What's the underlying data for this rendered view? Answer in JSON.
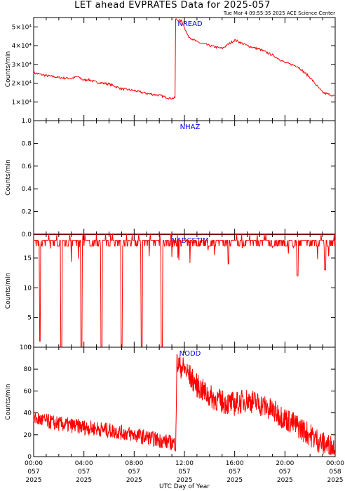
{
  "title": "LET ahead EVPRATES Data for 2025-057",
  "timestamp": "Tue Mar  4 09:55:35 2025 ACE Science Center",
  "xlabel": "UTC Day of Year",
  "colors": {
    "trace": "#ff0000",
    "panel_label": "#0000ff",
    "axis": "#000000"
  },
  "x_ticks": [
    {
      "time": "00:00",
      "doy": "057",
      "year": "2025"
    },
    {
      "time": "04:00",
      "doy": "057",
      "year": "2025"
    },
    {
      "time": "08:00",
      "doy": "057",
      "year": "2025"
    },
    {
      "time": "12:00",
      "doy": "057",
      "year": "2025"
    },
    {
      "time": "16:00",
      "doy": "057",
      "year": "2025"
    },
    {
      "time": "20:00",
      "doy": "057",
      "year": "2025"
    },
    {
      "time": "00:00",
      "doy": "058",
      "year": "2025"
    }
  ],
  "chart_data": [
    {
      "type": "line",
      "panel": "NREAD",
      "ylabel": "Counts/min",
      "ylim": [
        0,
        55000
      ],
      "yticks": [
        10000,
        20000,
        30000,
        40000,
        50000
      ],
      "ytick_labels": [
        "1×10⁴",
        "2×10⁴",
        "3×10⁴",
        "4×10⁴",
        "5×10⁴"
      ],
      "x_hours_range": [
        0,
        24
      ],
      "series": [
        {
          "points": [
            [
              0,
              25500
            ],
            [
              1,
              24000
            ],
            [
              2,
              23000
            ],
            [
              3,
              22500
            ],
            [
              3.5,
              23500
            ],
            [
              4,
              21500
            ],
            [
              4.3,
              22000
            ],
            [
              5,
              20500
            ],
            [
              6,
              19500
            ],
            [
              7,
              17000
            ],
            [
              8,
              16000
            ],
            [
              9,
              14500
            ],
            [
              10,
              13500
            ],
            [
              10.8,
              12000
            ],
            [
              11.3,
              12000
            ],
            [
              11.35,
              54000
            ],
            [
              11.8,
              53000
            ],
            [
              12.3,
              45000
            ],
            [
              13,
              42000
            ],
            [
              14,
              40000
            ],
            [
              15,
              38500
            ],
            [
              16,
              43000
            ],
            [
              17,
              40000
            ],
            [
              18,
              38000
            ],
            [
              19,
              35000
            ],
            [
              20,
              31000
            ],
            [
              21,
              29000
            ],
            [
              22,
              23000
            ],
            [
              23,
              15000
            ],
            [
              24,
              13000
            ]
          ]
        }
      ]
    },
    {
      "type": "line",
      "panel": "NHAZ",
      "ylabel": "Counts/min",
      "ylim": [
        0,
        1.0
      ],
      "yticks": [
        0,
        0.2,
        0.4,
        0.6,
        0.8,
        1.0
      ],
      "ytick_labels": [
        "0.0",
        "0.2",
        "0.4",
        "0.6",
        "0.8",
        "1.0"
      ],
      "x_hours_range": [
        0,
        24
      ],
      "series": [
        {
          "points": [
            [
              0,
              0
            ],
            [
              24,
              0
            ]
          ]
        }
      ]
    },
    {
      "type": "line",
      "panel": "NADCSTIM",
      "ylabel": "Counts/min",
      "ylim": [
        0,
        19
      ],
      "yticks": [
        0,
        5,
        10,
        15
      ],
      "ytick_labels": [
        "0",
        "5",
        "10",
        "15"
      ],
      "x_hours_range": [
        0,
        24
      ],
      "baseline": 18,
      "dropouts": [
        [
          0.5,
          1
        ],
        [
          2.2,
          0
        ],
        [
          3.8,
          0
        ],
        [
          5.4,
          0
        ],
        [
          7.0,
          0
        ],
        [
          8.6,
          0
        ],
        [
          10.2,
          0
        ],
        [
          21.0,
          12
        ],
        [
          15.5,
          14
        ],
        [
          23.2,
          13
        ]
      ]
    },
    {
      "type": "line",
      "panel": "NODD",
      "ylabel": "Counts/min",
      "ylim": [
        0,
        100
      ],
      "yticks": [
        0,
        20,
        40,
        60,
        80,
        100
      ],
      "ytick_labels": [
        "0",
        "20",
        "40",
        "60",
        "80",
        "100"
      ],
      "x_hours_range": [
        0,
        24
      ],
      "trend": [
        [
          0,
          35
        ],
        [
          2,
          30
        ],
        [
          4,
          27
        ],
        [
          6,
          24
        ],
        [
          8,
          20
        ],
        [
          10,
          15
        ],
        [
          11.3,
          12
        ],
        [
          11.4,
          85
        ],
        [
          12,
          80
        ],
        [
          13,
          65
        ],
        [
          14,
          55
        ],
        [
          15,
          50
        ],
        [
          16,
          48
        ],
        [
          17,
          52
        ],
        [
          18,
          48
        ],
        [
          19,
          42
        ],
        [
          20,
          35
        ],
        [
          21,
          28
        ],
        [
          22,
          20
        ],
        [
          23,
          12
        ],
        [
          24,
          8
        ]
      ]
    }
  ]
}
